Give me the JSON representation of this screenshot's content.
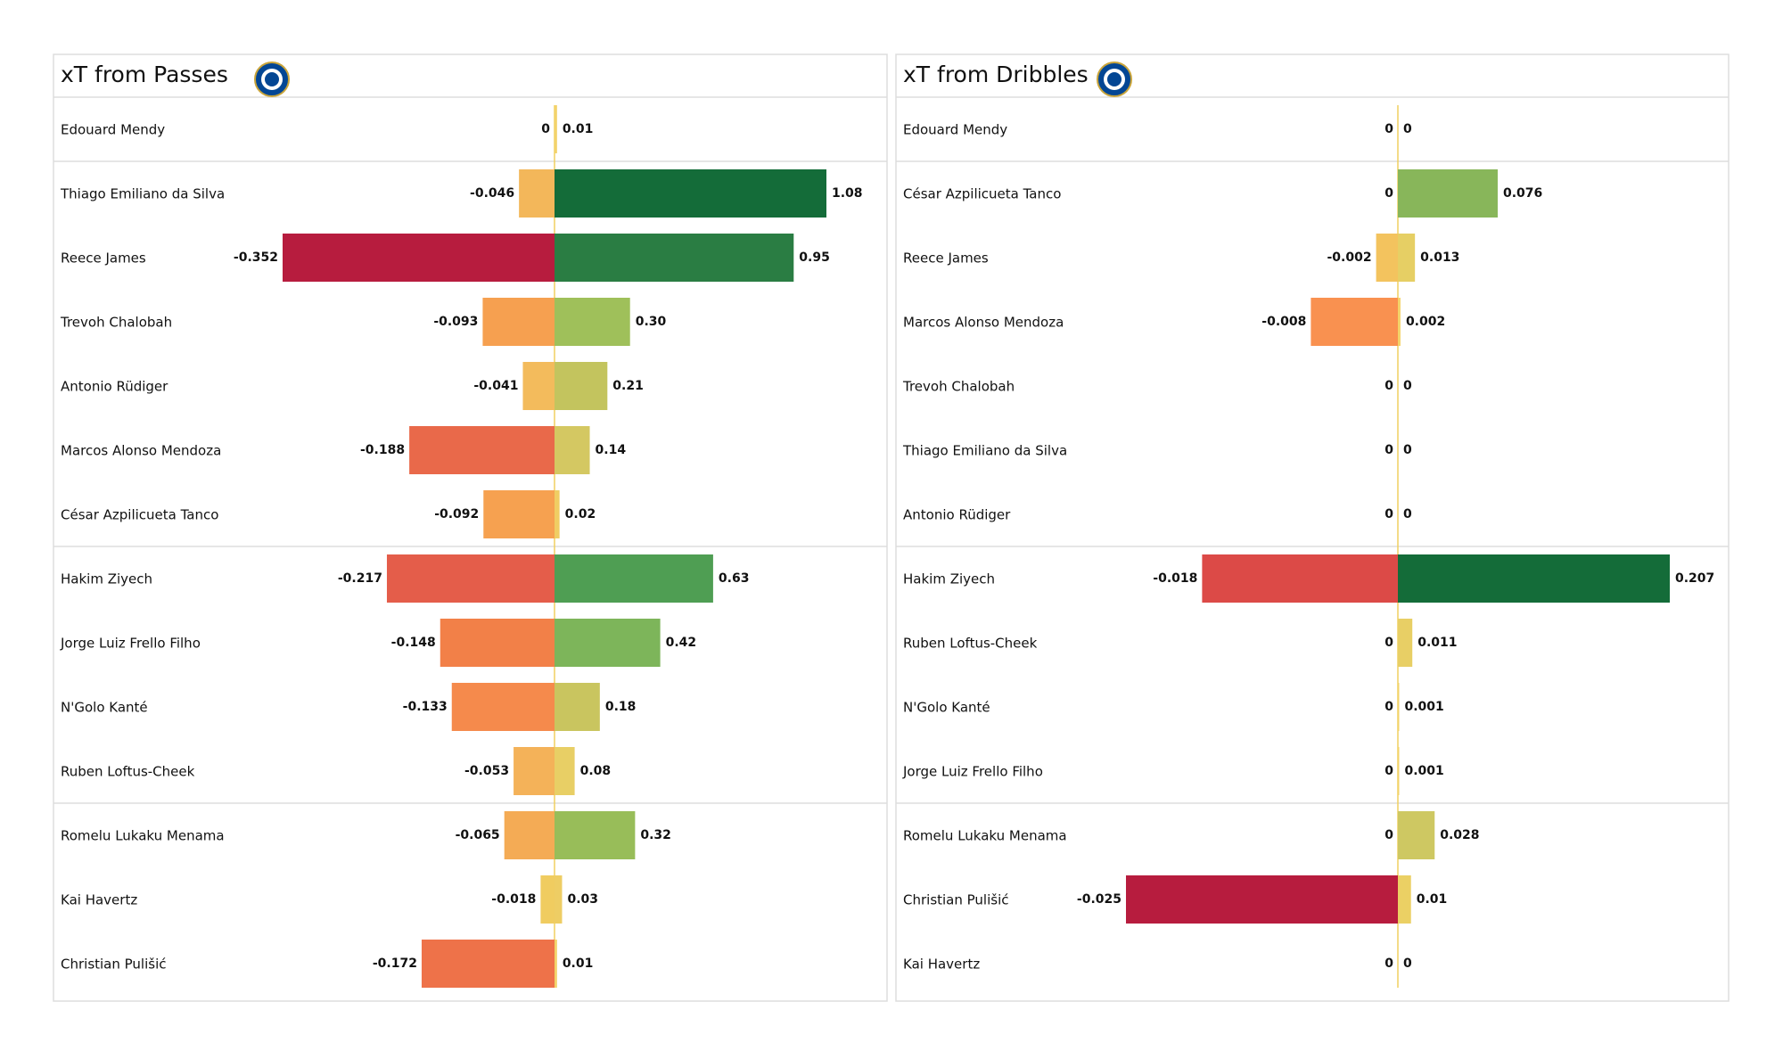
{
  "chart_data": [
    {
      "type": "diverging-bar",
      "title": "xT from Passes",
      "categories": [
        "Edouard Mendy",
        "Thiago Emiliano da Silva",
        "Reece James",
        "Trevoh Chalobah",
        "Antonio Rüdiger",
        "Marcos  Alonso Mendoza",
        "César Azpilicueta Tanco",
        "Hakim Ziyech",
        "Jorge Luiz Frello Filho",
        "N'Golo Kanté",
        "Ruben Loftus-Cheek",
        "Romelu Lukaku Menama",
        "Kai Havertz",
        "Christian Pulišić"
      ],
      "series": [
        {
          "values": [
            0,
            -0.046,
            -0.352,
            -0.093,
            -0.041,
            -0.188,
            -0.092,
            -0.217,
            -0.148,
            -0.133,
            -0.053,
            -0.065,
            -0.018,
            -0.172
          ],
          "colors": [
            "#f3d36a",
            "#f3b75a",
            "#b71c3e",
            "#f6a050",
            "#f3bb5c",
            "#e9694a",
            "#f6a150",
            "#e45d4a",
            "#f28048",
            "#f58a4c",
            "#f4b259",
            "#f4ab55",
            "#f0cc60",
            "#ee7249"
          ]
        },
        {
          "values": [
            0.01,
            1.08,
            0.95,
            0.3,
            0.21,
            0.14,
            0.02,
            0.63,
            0.42,
            0.18,
            0.08,
            0.32,
            0.03,
            0.01
          ],
          "value_labels": [
            "0.01",
            "1.08",
            "0.95",
            "0.30",
            "0.21",
            "0.14",
            "0.02",
            "0.63",
            "0.42",
            "0.18",
            "0.08",
            "0.32",
            "0.03",
            "0.01"
          ],
          "colors": [
            "#f3d36a",
            "#146c39",
            "#2a7d43",
            "#9fc05a",
            "#c3c45e",
            "#d4c862",
            "#f0cd63",
            "#4f9e53",
            "#7db55a",
            "#c9c55f",
            "#e8cf65",
            "#98bd59",
            "#eecd64",
            "#f3d36a"
          ]
        }
      ]
    },
    {
      "type": "diverging-bar",
      "title": "xT from Dribbles",
      "categories": [
        "Edouard Mendy",
        "César Azpilicueta Tanco",
        "Reece James",
        "Marcos  Alonso Mendoza",
        "Trevoh Chalobah",
        "Thiago Emiliano da Silva",
        "Antonio Rüdiger",
        "Hakim Ziyech",
        "Ruben Loftus-Cheek",
        "N'Golo Kanté",
        "Jorge Luiz Frello Filho",
        "Romelu Lukaku Menama",
        "Christian Pulišić",
        "Kai Havertz"
      ],
      "series": [
        {
          "values": [
            0,
            0,
            -0.002,
            -0.008,
            0,
            0,
            0,
            -0.018,
            0,
            0,
            0,
            0,
            -0.025,
            0
          ],
          "colors": [
            "#f3d36a",
            "#f3d36a",
            "#f3c35e",
            "#f99150",
            "#f3d36a",
            "#f3d36a",
            "#f3d36a",
            "#dc4a47",
            "#f3d36a",
            "#f3d36a",
            "#f3d36a",
            "#f3d36a",
            "#b71c3e",
            "#f3d36a"
          ]
        },
        {
          "values": [
            0,
            0.076,
            0.013,
            0.002,
            0,
            0,
            0,
            0.207,
            0.011,
            0.001,
            0.001,
            0.028,
            0.01,
            0
          ],
          "colors": [
            "#f3d36a",
            "#88b65a",
            "#e6cf64",
            "#f3d36a",
            "#f3d36a",
            "#f3d36a",
            "#f3d36a",
            "#146c39",
            "#e8cf65",
            "#f3d36a",
            "#f3d36a",
            "#cec862",
            "#ebd064",
            "#f3d36a"
          ]
        }
      ]
    }
  ]
}
